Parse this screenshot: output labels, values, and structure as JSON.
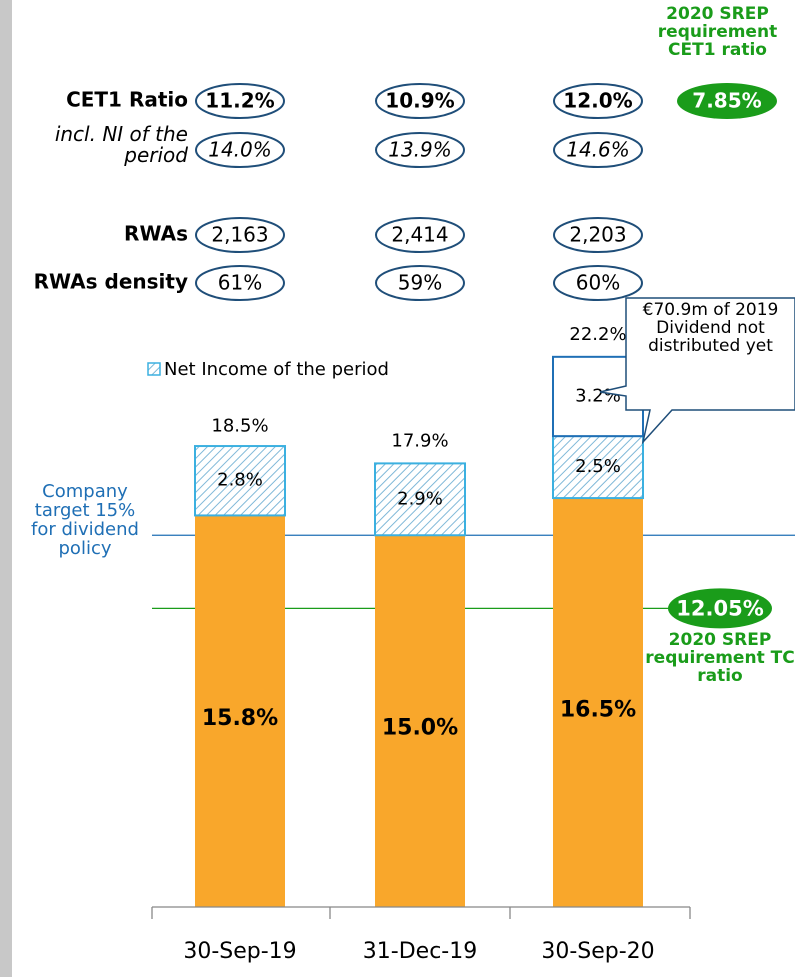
{
  "chart_data": {
    "type": "bar",
    "stacked": true,
    "categories": [
      "30-Sep-19",
      "31-Dec-19",
      "30-Sep-20"
    ],
    "ylim": [
      0,
      23
    ],
    "series": [
      {
        "color": "#f9a72b",
        "values": [
          15.8,
          15.0,
          16.5
        ],
        "value_labels": [
          "15.8%",
          "15.0%",
          "16.5%"
        ]
      },
      {
        "name": "Net Income of the period",
        "color": "#3bb0e0",
        "pattern": "hatch",
        "values": [
          2.8,
          2.9,
          2.5
        ],
        "value_labels": [
          "2.8%",
          "2.9%",
          "2.5%"
        ]
      },
      {
        "color": "#1f6fb5",
        "values": [
          null,
          null,
          3.2
        ],
        "value_labels": [
          null,
          null,
          "3.2%"
        ]
      }
    ],
    "totals": {
      "values": [
        18.5,
        17.9,
        22.2
      ],
      "value_labels": [
        "18.5%",
        "17.9%",
        "22.2%"
      ]
    },
    "callout": "€70.9m of 2019 Dividend not distributed yet",
    "reference_lines": [
      {
        "value": 15,
        "color": "#1f6fb5",
        "label": "Company target 15% for dividend policy"
      },
      {
        "value": 12.05,
        "color": "#1a9c1a",
        "value_label": "12.05%",
        "label": "2020 SREP requirement TC ratio"
      }
    ],
    "metrics": [
      {
        "label": "CET1 Ratio",
        "style": "bold",
        "values": [
          11.2,
          10.9,
          12.0
        ],
        "value_labels": [
          "11.2%",
          "10.9%",
          "12.0%"
        ]
      },
      {
        "label": "incl. NI of the period",
        "style": "italic",
        "values": [
          14.0,
          13.9,
          14.6
        ],
        "value_labels": [
          "14.0%",
          "13.9%",
          "14.6%"
        ]
      },
      {
        "label": "RWAs",
        "style": "normal",
        "values": [
          2163,
          2414,
          2203
        ],
        "value_labels": [
          "2,163",
          "2,414",
          "2,203"
        ]
      },
      {
        "label": "RWAs density",
        "style": "normal",
        "values": [
          61,
          59,
          60
        ],
        "value_labels": [
          "61%",
          "59%",
          "60%"
        ]
      }
    ],
    "cet1_requirement": {
      "label": "2020 SREP requirement CET1 ratio",
      "value": 7.85,
      "value_label": "7.85%"
    }
  }
}
